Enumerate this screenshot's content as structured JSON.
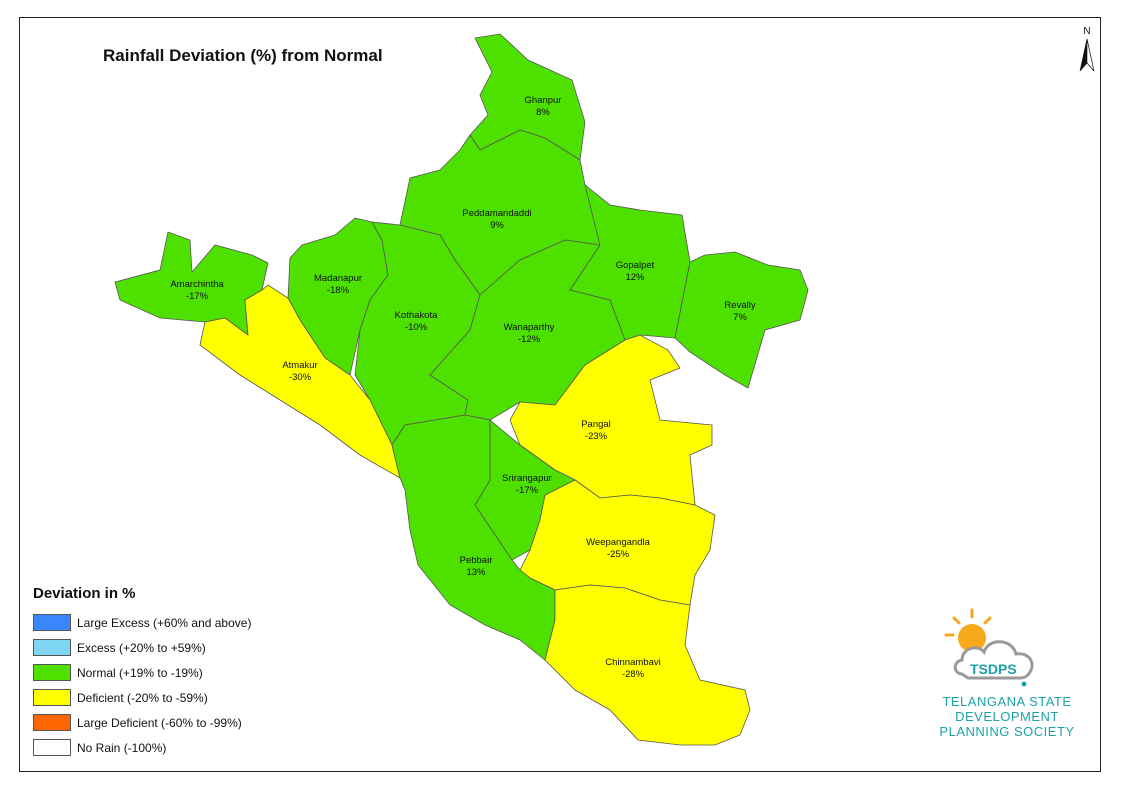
{
  "title": "Rainfall Deviation (%) from Normal",
  "north_label": "N",
  "colors": {
    "large_excess": "#3a86ff",
    "excess": "#7fd6f2",
    "normal": "#4ee100",
    "deficient": "#ffff00",
    "large_deficient": "#ff6600",
    "no_rain": "#ffffff"
  },
  "legend": {
    "title": "Deviation in %",
    "items": [
      {
        "label": "Large Excess (+60% and above)",
        "color": "#3a86ff"
      },
      {
        "label": "Excess (+20% to +59%)",
        "color": "#7fd6f2"
      },
      {
        "label": "Normal (+19% to -19%)",
        "color": "#4ee100"
      },
      {
        "label": "Deficient (-20% to -59%)",
        "color": "#ffff00"
      },
      {
        "label": "Large Deficient (-60% to -99%)",
        "color": "#ff6600"
      },
      {
        "label": "No Rain (-100%)",
        "color": "#ffffff"
      }
    ]
  },
  "mandals": [
    {
      "name": "Ghanpur",
      "deviation": "8%",
      "category": "normal"
    },
    {
      "name": "Peddamandaddi",
      "deviation": "9%",
      "category": "normal"
    },
    {
      "name": "Amarchintha",
      "deviation": "-17%",
      "category": "normal"
    },
    {
      "name": "Madanapur",
      "deviation": "-18%",
      "category": "normal"
    },
    {
      "name": "Kothakota",
      "deviation": "-10%",
      "category": "normal"
    },
    {
      "name": "Wanaparthy",
      "deviation": "-12%",
      "category": "normal"
    },
    {
      "name": "Gopalpet",
      "deviation": "12%",
      "category": "normal"
    },
    {
      "name": "Revally",
      "deviation": "7%",
      "category": "normal"
    },
    {
      "name": "Atmakur",
      "deviation": "-30%",
      "category": "deficient"
    },
    {
      "name": "Pangal",
      "deviation": "-23%",
      "category": "deficient"
    },
    {
      "name": "Srirangapur",
      "deviation": "-17%",
      "category": "normal"
    },
    {
      "name": "Weepangandla",
      "deviation": "-25%",
      "category": "deficient"
    },
    {
      "name": "Pebbair",
      "deviation": "13%",
      "category": "normal"
    },
    {
      "name": "Chinnambavi",
      "deviation": "-28%",
      "category": "deficient"
    }
  ],
  "logo": {
    "acronym": "TSDPS",
    "org_line1": "TELANGANA STATE",
    "org_line2": "DEVELOPMENT",
    "org_line3": "PLANNING SOCIETY"
  }
}
